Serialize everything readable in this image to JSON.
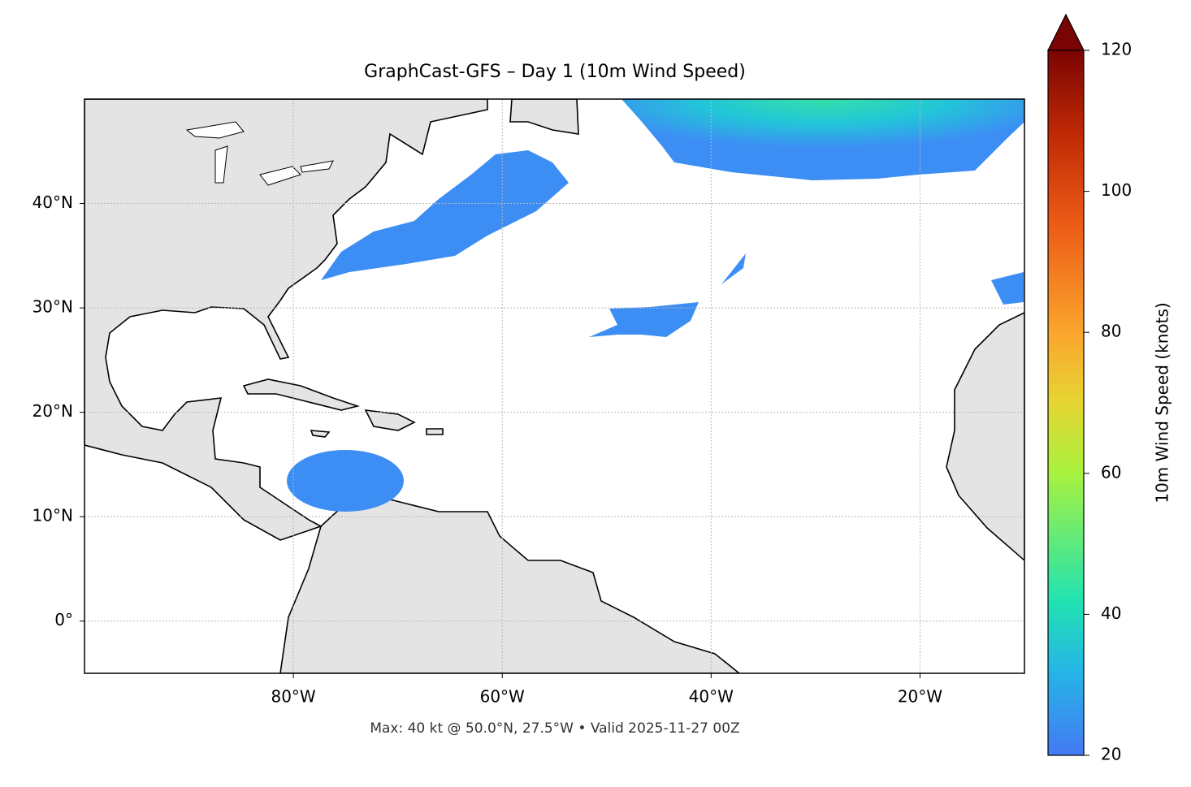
{
  "chart_data": {
    "type": "map",
    "title": "GraphCast-GFS – Day 1 (10m Wind Speed)",
    "footer": "Max: 40 kt @ 50.0°N, 27.5°W • Valid 2025-11-27 00Z",
    "xlim": [
      -100,
      -10
    ],
    "ylim": [
      -5,
      50
    ],
    "xticks": [
      {
        "value": -80,
        "label": "80°W"
      },
      {
        "value": -60,
        "label": "60°W"
      },
      {
        "value": -40,
        "label": "40°W"
      },
      {
        "value": -20,
        "label": "20°W"
      }
    ],
    "yticks": [
      {
        "value": 0,
        "label": "0°"
      },
      {
        "value": 10,
        "label": "10°N"
      },
      {
        "value": 20,
        "label": "20°N"
      },
      {
        "value": 30,
        "label": "30°N"
      },
      {
        "value": 40,
        "label": "40°N"
      }
    ],
    "grid": true,
    "colorbar": {
      "label": "10m Wind Speed (knots)",
      "lim": [
        20,
        120
      ],
      "ticks": [
        20,
        40,
        60,
        80,
        100,
        120
      ],
      "extend": "max"
    }
  }
}
